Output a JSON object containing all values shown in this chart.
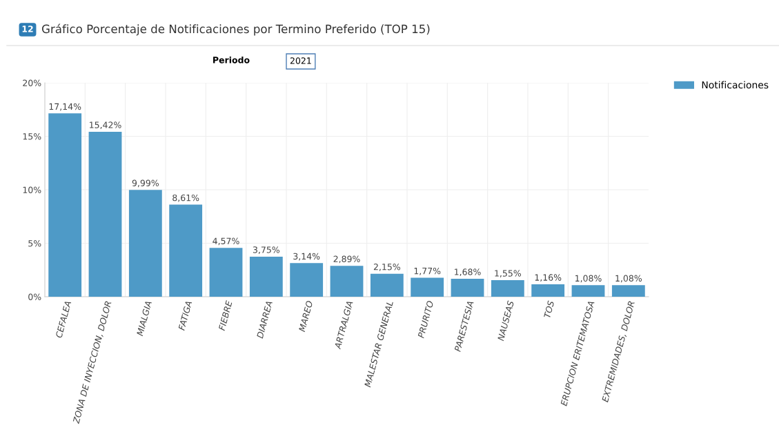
{
  "chart_data": {
    "type": "bar",
    "title": "Gráfico Porcentaje de Notificaciones por Termino Preferido (TOP 15)",
    "annotations": [
      "12",
      "Periodo",
      "2021"
    ],
    "categories": [
      "CEFALEA",
      "ZONA DE INYECCION, DOLOR",
      "MIALGIA",
      "FATIGA",
      "FIEBRE",
      "DIARREA",
      "MAREO",
      "ARTRALGIA",
      "MALESTAR GENERAL",
      "PRURITO",
      "PARESTESIA",
      "NAUSEAS",
      "TOS",
      "ERUPCION ERITEMATOSA",
      "EXTREMIDADES, DOLOR"
    ],
    "series": [
      {
        "name": "Notificaciones",
        "color": "#4e9ac7",
        "values": [
          17.14,
          15.42,
          9.99,
          8.61,
          4.57,
          3.75,
          3.14,
          2.89,
          2.15,
          1.77,
          1.68,
          1.55,
          1.16,
          1.08,
          1.08
        ],
        "value_labels": [
          "17,14%",
          "15,42%",
          "9,99%",
          "8,61%",
          "4,57%",
          "3,75%",
          "3,14%",
          "2,89%",
          "2,15%",
          "1,77%",
          "1,68%",
          "1,55%",
          "1,16%",
          "1,08%",
          "1,08%"
        ]
      }
    ],
    "ylim": [
      0,
      20
    ],
    "yticks": [
      {
        "value": 0,
        "label": "0%"
      },
      {
        "value": 5,
        "label": "5%"
      },
      {
        "value": 10,
        "label": "10%"
      },
      {
        "value": 15,
        "label": "15%"
      },
      {
        "value": 20,
        "label": "20%"
      }
    ],
    "grid": true,
    "legend": "top right"
  }
}
